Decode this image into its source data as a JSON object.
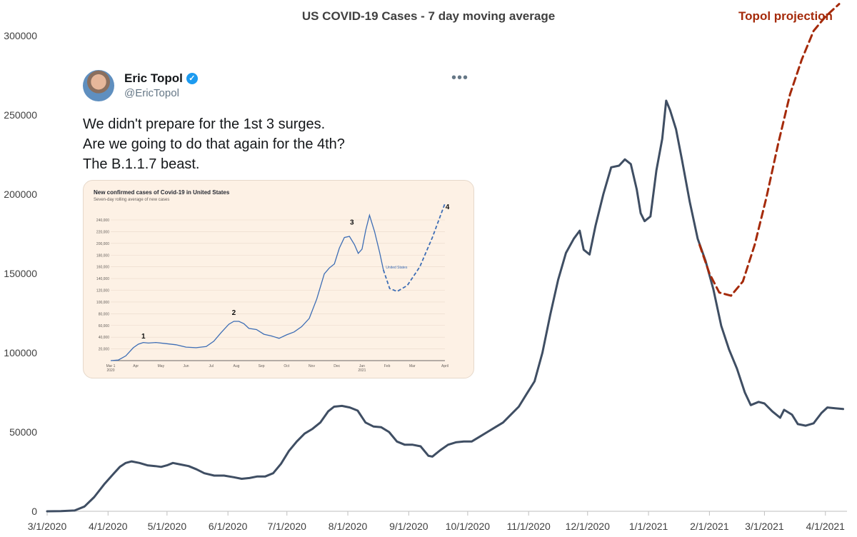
{
  "chart_data": {
    "type": "line",
    "title": "US COVID-19 Cases - 7 day moving average",
    "ylim": [
      0,
      300000
    ],
    "yticks": [
      "0",
      "50000",
      "100000",
      "150000",
      "200000",
      "250000",
      "300000"
    ],
    "xlim": [
      "2020-03-01",
      "2021-04-12"
    ],
    "xticks": [
      "3/1/2020",
      "4/1/2020",
      "5/1/2020",
      "6/1/2020",
      "7/1/2020",
      "8/1/2020",
      "9/1/2020",
      "10/1/2020",
      "11/1/2020",
      "12/1/2020",
      "1/1/2021",
      "2/1/2021",
      "3/1/2021",
      "4/1/2021"
    ],
    "grid": false,
    "colors": {
      "actual": "#3f4e63",
      "projection": "#a52a0a"
    },
    "series": [
      {
        "style": "solid",
        "points": [
          [
            "2020-03-01",
            0
          ],
          [
            "2020-03-08",
            100
          ],
          [
            "2020-03-15",
            500
          ],
          [
            "2020-03-20",
            3000
          ],
          [
            "2020-03-25",
            9000
          ],
          [
            "2020-03-30",
            17000
          ],
          [
            "2020-04-04",
            24000
          ],
          [
            "2020-04-07",
            28000
          ],
          [
            "2020-04-10",
            30500
          ],
          [
            "2020-04-13",
            31500
          ],
          [
            "2020-04-17",
            30500
          ],
          [
            "2020-04-21",
            29000
          ],
          [
            "2020-04-25",
            28500
          ],
          [
            "2020-04-28",
            28000
          ],
          [
            "2020-05-01",
            29000
          ],
          [
            "2020-05-04",
            30500
          ],
          [
            "2020-05-08",
            29500
          ],
          [
            "2020-05-12",
            28500
          ],
          [
            "2020-05-16",
            26500
          ],
          [
            "2020-05-20",
            24000
          ],
          [
            "2020-05-25",
            22500
          ],
          [
            "2020-05-30",
            22500
          ],
          [
            "2020-06-04",
            21500
          ],
          [
            "2020-06-08",
            20500
          ],
          [
            "2020-06-12",
            21000
          ],
          [
            "2020-06-16",
            22000
          ],
          [
            "2020-06-20",
            22000
          ],
          [
            "2020-06-24",
            24000
          ],
          [
            "2020-06-28",
            30000
          ],
          [
            "2020-07-02",
            38000
          ],
          [
            "2020-07-06",
            44000
          ],
          [
            "2020-07-10",
            49000
          ],
          [
            "2020-07-14",
            52000
          ],
          [
            "2020-07-18",
            56000
          ],
          [
            "2020-07-22",
            63000
          ],
          [
            "2020-07-25",
            66000
          ],
          [
            "2020-07-29",
            66500
          ],
          [
            "2020-08-02",
            65500
          ],
          [
            "2020-08-06",
            63500
          ],
          [
            "2020-08-10",
            56000
          ],
          [
            "2020-08-14",
            53500
          ],
          [
            "2020-08-18",
            53000
          ],
          [
            "2020-08-22",
            50000
          ],
          [
            "2020-08-26",
            44000
          ],
          [
            "2020-08-30",
            42000
          ],
          [
            "2020-09-03",
            42000
          ],
          [
            "2020-09-07",
            41000
          ],
          [
            "2020-09-11",
            35000
          ],
          [
            "2020-09-13",
            34500
          ],
          [
            "2020-09-17",
            38500
          ],
          [
            "2020-09-21",
            42000
          ],
          [
            "2020-09-25",
            43500
          ],
          [
            "2020-09-29",
            44000
          ],
          [
            "2020-10-03",
            44000
          ],
          [
            "2020-10-07",
            47000
          ],
          [
            "2020-10-11",
            50000
          ],
          [
            "2020-10-15",
            53000
          ],
          [
            "2020-10-19",
            56000
          ],
          [
            "2020-10-23",
            61000
          ],
          [
            "2020-10-27",
            66000
          ],
          [
            "2020-10-31",
            74000
          ],
          [
            "2020-11-04",
            82000
          ],
          [
            "2020-11-08",
            100000
          ],
          [
            "2020-11-12",
            124000
          ],
          [
            "2020-11-16",
            146000
          ],
          [
            "2020-11-20",
            163000
          ],
          [
            "2020-11-24",
            172000
          ],
          [
            "2020-11-27",
            177000
          ],
          [
            "2020-11-29",
            165000
          ],
          [
            "2020-12-02",
            162000
          ],
          [
            "2020-12-05",
            180000
          ],
          [
            "2020-12-09",
            200000
          ],
          [
            "2020-12-13",
            217000
          ],
          [
            "2020-12-17",
            218000
          ],
          [
            "2020-12-20",
            222000
          ],
          [
            "2020-12-23",
            219000
          ],
          [
            "2020-12-26",
            203000
          ],
          [
            "2020-12-28",
            188000
          ],
          [
            "2020-12-30",
            183000
          ],
          [
            "2021-01-02",
            186000
          ],
          [
            "2021-01-05",
            215000
          ],
          [
            "2021-01-08",
            235000
          ],
          [
            "2021-01-10",
            259000
          ],
          [
            "2021-01-12",
            253000
          ],
          [
            "2021-01-15",
            241000
          ],
          [
            "2021-01-18",
            222000
          ],
          [
            "2021-01-22",
            195000
          ],
          [
            "2021-01-26",
            172000
          ],
          [
            "2021-01-30",
            158000
          ],
          [
            "2021-02-03",
            140000
          ],
          [
            "2021-02-07",
            117000
          ],
          [
            "2021-02-11",
            102000
          ],
          [
            "2021-02-15",
            90000
          ],
          [
            "2021-02-19",
            75000
          ],
          [
            "2021-02-22",
            67000
          ],
          [
            "2021-02-26",
            69000
          ],
          [
            "2021-03-01",
            68000
          ],
          [
            "2021-03-05",
            63000
          ],
          [
            "2021-03-09",
            59000
          ],
          [
            "2021-03-11",
            64000
          ],
          [
            "2021-03-15",
            61000
          ],
          [
            "2021-03-18",
            55000
          ],
          [
            "2021-03-22",
            54000
          ],
          [
            "2021-03-26",
            55500
          ],
          [
            "2021-03-30",
            62000
          ],
          [
            "2021-04-02",
            65500
          ],
          [
            "2021-04-06",
            65000
          ],
          [
            "2021-04-10",
            64500
          ]
        ]
      },
      {
        "name": "Topol projection",
        "style": "dashed",
        "points": [
          [
            "2021-01-27",
            168000
          ],
          [
            "2021-02-01",
            150000
          ],
          [
            "2021-02-06",
            138000
          ],
          [
            "2021-02-12",
            136000
          ],
          [
            "2021-02-18",
            145000
          ],
          [
            "2021-02-24",
            168000
          ],
          [
            "2021-03-02",
            198000
          ],
          [
            "2021-03-08",
            232000
          ],
          [
            "2021-03-14",
            263000
          ],
          [
            "2021-03-20",
            285000
          ],
          [
            "2021-03-26",
            303000
          ],
          [
            "2021-04-01",
            312000
          ],
          [
            "2021-04-08",
            320000
          ]
        ]
      }
    ]
  },
  "tweet": {
    "author_name": "Eric Topol",
    "handle": "@EricTopol",
    "text_lines": [
      "We didn't prepare for the 1st 3 surges.",
      "Are we going to do that again for the 4th?",
      "The B.1.1.7 beast."
    ],
    "more_label": "•••",
    "verified_mark": "✓",
    "inset_chart": {
      "title": "New confirmed cases of Covid-19 in United States",
      "subtitle": "Seven-day rolling average of new cases",
      "series_label": "United States",
      "yticks": [
        "20,000",
        "40,000",
        "60,000",
        "80,000",
        "100,000",
        "120,000",
        "140,000",
        "160,000",
        "180,000",
        "200,000",
        "220,000",
        "240,000"
      ],
      "ymax": 240000,
      "xticks": [
        "Mar 1",
        "Apr",
        "May",
        "Jun",
        "Jul",
        "Aug",
        "Sep",
        "Oct",
        "Nov",
        "Dec",
        "Jan",
        "Feb",
        "Mar",
        "April"
      ],
      "xtick_sub": [
        "2020",
        "",
        "",
        "",
        "",
        "",
        "",
        "",
        "",
        "",
        "2021",
        "",
        "",
        ""
      ],
      "annotations": [
        "1",
        "2",
        "3",
        "4"
      ],
      "line_color": "#3d6db5",
      "points": [
        [
          0,
          0
        ],
        [
          0.3,
          1000
        ],
        [
          0.6,
          8000
        ],
        [
          0.9,
          22000
        ],
        [
          1.1,
          28000
        ],
        [
          1.3,
          31000
        ],
        [
          1.5,
          30000
        ],
        [
          1.8,
          31000
        ],
        [
          2.2,
          29000
        ],
        [
          2.6,
          27000
        ],
        [
          3.0,
          23000
        ],
        [
          3.4,
          22000
        ],
        [
          3.8,
          24000
        ],
        [
          4.1,
          33000
        ],
        [
          4.4,
          48000
        ],
        [
          4.7,
          62000
        ],
        [
          4.9,
          67000
        ],
        [
          5.1,
          67000
        ],
        [
          5.3,
          63000
        ],
        [
          5.5,
          55000
        ],
        [
          5.8,
          53000
        ],
        [
          6.1,
          45000
        ],
        [
          6.4,
          42000
        ],
        [
          6.7,
          38000
        ],
        [
          7.0,
          44000
        ],
        [
          7.3,
          49000
        ],
        [
          7.6,
          58000
        ],
        [
          7.9,
          72000
        ],
        [
          8.2,
          105000
        ],
        [
          8.5,
          148000
        ],
        [
          8.7,
          158000
        ],
        [
          8.9,
          165000
        ],
        [
          9.1,
          192000
        ],
        [
          9.3,
          210000
        ],
        [
          9.5,
          212000
        ],
        [
          9.7,
          198000
        ],
        [
          9.85,
          183000
        ],
        [
          10.0,
          190000
        ],
        [
          10.15,
          223000
        ],
        [
          10.3,
          248000
        ],
        [
          10.5,
          220000
        ],
        [
          10.7,
          185000
        ],
        [
          10.85,
          155000
        ]
      ],
      "projection": [
        [
          10.85,
          155000
        ],
        [
          11.1,
          123000
        ],
        [
          11.4,
          118000
        ],
        [
          11.8,
          128000
        ],
        [
          12.3,
          160000
        ],
        [
          12.8,
          210000
        ],
        [
          13.3,
          268000
        ]
      ]
    }
  }
}
